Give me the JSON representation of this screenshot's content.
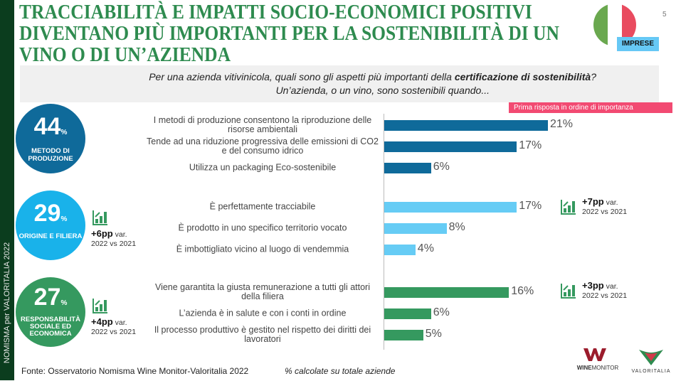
{
  "sidebar": {
    "text": "NOMISMA per VALORITALIA 2022"
  },
  "title": "TRACCIABILITÀ E IMPATTI SOCIO-ECONOMICI POSITIVI DIVENTANO PIÙ IMPORTANTI PER LA SOSTENIBILITÀ DI UN VINO O DI UN’AZIENDA",
  "page_number": "5",
  "badge": "IMPRESE",
  "question": {
    "line1_pre": "Per una azienda vitivinicola, quali sono gli aspetti più importanti della ",
    "line1_bold": "certificazione di sostenibilità",
    "line1_post": "?",
    "line2": "Un’azienda, o un vino, sono sostenibili quando..."
  },
  "legend_tag": "Prima risposta in ordine di importanza",
  "groups": [
    {
      "value": "44",
      "unit": "%",
      "label": "METODO DI PRODUZIONE",
      "color": "#0f6a9a"
    },
    {
      "value": "29",
      "unit": "%",
      "label": "ORIGINE E FILIERA",
      "color": "#19b2ea"
    },
    {
      "value": "27",
      "unit": "%",
      "label": "RESPONSABILITÀ SOCIALE ED ECONOMICA",
      "color": "#35995f"
    }
  ],
  "variations": [
    {
      "pp": "+6pp",
      "var": "var.",
      "period": "2022 vs 2021"
    },
    {
      "pp": "+4pp",
      "var": "var.",
      "period": "2022 vs 2021"
    },
    {
      "pp": "+7pp",
      "var": "var.",
      "period": "2022 vs 2021"
    },
    {
      "pp": "+3pp",
      "var": "var.",
      "period": "2022 vs 2021"
    }
  ],
  "chart_data": {
    "type": "bar",
    "orientation": "horizontal",
    "xlim": [
      0,
      21
    ],
    "grid": false,
    "categories": [
      "I metodi di produzione consentono la riproduzione delle risorse ambientali",
      "Tende ad una riduzione progressiva delle emissioni di CO2 e del consumo idrico",
      "Utilizza un packaging Eco-sostenibile",
      "È perfettamente tracciabile",
      "È prodotto in uno specifico territorio vocato",
      "È imbottigliato vicino al luogo di vendemmia",
      "Viene garantita la giusta remunerazione a tutti gli attori della filiera",
      "L’azienda è in salute e con i conti in ordine",
      "Il processo produttivo è gestito nel rispetto dei diritti dei lavoratori"
    ],
    "values": [
      21,
      17,
      6,
      17,
      8,
      4,
      16,
      6,
      5
    ],
    "value_labels": [
      "21%",
      "17%",
      "6%",
      "17%",
      "8%",
      "4%",
      "16%",
      "6%",
      "5%"
    ],
    "colors": [
      "#0f6a9a",
      "#0f6a9a",
      "#0f6a9a",
      "#66ccf5",
      "#66ccf5",
      "#66ccf5",
      "#35995f",
      "#35995f",
      "#35995f"
    ]
  },
  "footer": {
    "source": "Fonte: Osservatorio Nomisma Wine Monitor-Valoritalia 2022",
    "note": "% calcolate su totale aziende"
  },
  "logos": {
    "winemonitor": "WINEMONITOR Nomisma",
    "valoritalia": "VALORITALIA"
  }
}
